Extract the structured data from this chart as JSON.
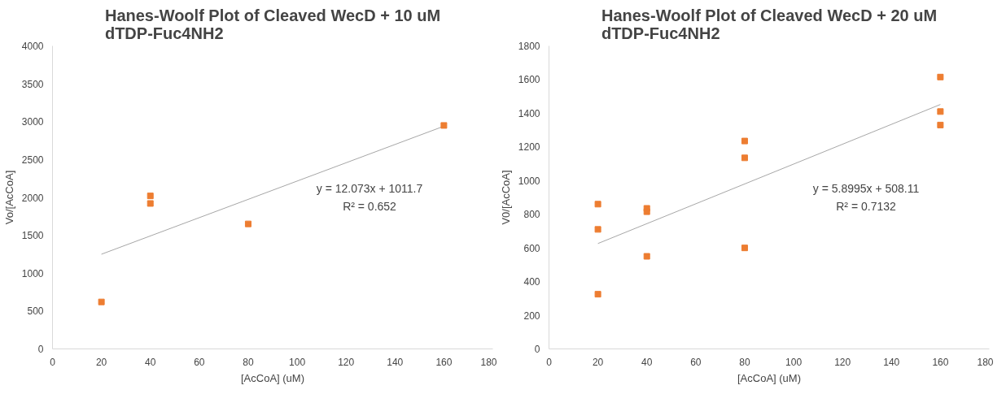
{
  "chart_data": [
    {
      "type": "scatter",
      "title": "Hanes-Woolf Plot of Cleaved WecD + 10 uM\ndTDP-Fuc4NH2",
      "xlabel": "[AcCoA] (uM)",
      "ylabel": "Vo/[AcCoA]",
      "xlim": [
        0,
        180
      ],
      "xticks": [
        0,
        20,
        40,
        60,
        80,
        100,
        120,
        140,
        160,
        180
      ],
      "ylim": [
        0,
        4000
      ],
      "yticks": [
        0,
        500,
        1000,
        1500,
        2000,
        2500,
        3000,
        3500,
        4000
      ],
      "grid": false,
      "series": [
        {
          "marker": "square",
          "color": "#ed7d31",
          "x": [
            20,
            40,
            40,
            80,
            160
          ],
          "values": [
            620,
            2020,
            1920,
            1650,
            2950
          ]
        },
        {
          "type": "line",
          "color": "#a6a6a6",
          "x": [
            20,
            160
          ],
          "values": [
            1250,
            2940
          ]
        }
      ],
      "annotations": [
        "y = 12.073x + 1011.7",
        "R² = 0.652"
      ]
    },
    {
      "type": "scatter",
      "title": "Hanes-Woolf Plot of Cleaved WecD + 20 uM\ndTDP-Fuc4NH2",
      "xlabel": "[AcCoA] (uM)",
      "ylabel": "V0/[AcCoA]",
      "xlim": [
        0,
        180
      ],
      "xticks": [
        0,
        20,
        40,
        60,
        80,
        100,
        120,
        140,
        160,
        180
      ],
      "ylim": [
        0,
        1800
      ],
      "yticks": [
        0,
        200,
        400,
        600,
        800,
        1000,
        1200,
        1400,
        1600,
        1800
      ],
      "grid": false,
      "series": [
        {
          "marker": "square",
          "color": "#ed7d31",
          "x": [
            20,
            20,
            20,
            40,
            40,
            40,
            80,
            80,
            80,
            160,
            160,
            160
          ],
          "values": [
            860,
            710,
            325,
            835,
            815,
            550,
            1235,
            1135,
            600,
            1615,
            1410,
            1330
          ]
        },
        {
          "type": "line",
          "color": "#a6a6a6",
          "x": [
            20,
            160
          ],
          "values": [
            626,
            1452
          ]
        }
      ],
      "annotations": [
        "y = 5.8995x + 508.11",
        "R² = 0.7132"
      ]
    }
  ]
}
